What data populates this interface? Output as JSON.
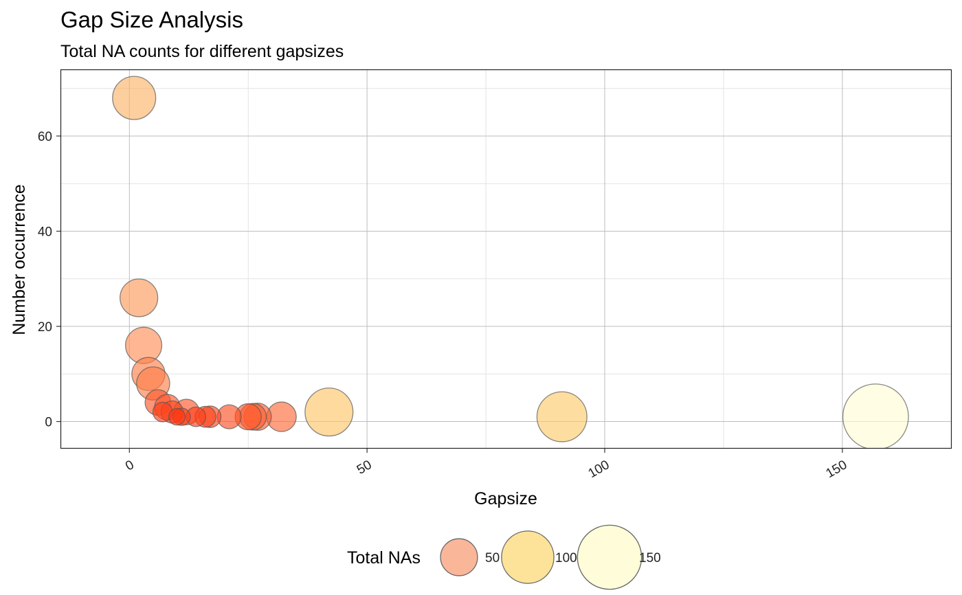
{
  "chart_data": {
    "type": "scatter",
    "title": "Gap Size Analysis",
    "subtitle": "Total NA counts for different gapsizes",
    "xlabel": "Gapsize",
    "ylabel": "Number occurrence",
    "xlim": [
      -14.5,
      173
    ],
    "ylim": [
      -5.7,
      74
    ],
    "x_ticks": [
      0,
      50,
      100,
      150
    ],
    "y_ticks": [
      0,
      20,
      40,
      60
    ],
    "grid": true,
    "legend_position": "bottom",
    "legend": {
      "title": "Total NAs",
      "entries": [
        {
          "label": "50",
          "value": 50,
          "color": "#f9a47f"
        },
        {
          "label": "100",
          "value": 100,
          "color": "#fddc80"
        },
        {
          "label": "150",
          "value": 150,
          "color": "#fefbd0"
        }
      ]
    },
    "size_scale": {
      "max_value": 157,
      "max_radius_data": 6.9
    },
    "points": [
      {
        "gapsize": 1,
        "occurrence": 68,
        "total_na": 68
      },
      {
        "gapsize": 2,
        "occurrence": 26,
        "total_na": 52
      },
      {
        "gapsize": 3,
        "occurrence": 16,
        "total_na": 48
      },
      {
        "gapsize": 4,
        "occurrence": 10,
        "total_na": 40
      },
      {
        "gapsize": 5,
        "occurrence": 8,
        "total_na": 40
      },
      {
        "gapsize": 6,
        "occurrence": 4,
        "total_na": 24
      },
      {
        "gapsize": 7,
        "occurrence": 2,
        "total_na": 14
      },
      {
        "gapsize": 8,
        "occurrence": 3,
        "total_na": 24
      },
      {
        "gapsize": 9,
        "occurrence": 2,
        "total_na": 18
      },
      {
        "gapsize": 10,
        "occurrence": 1,
        "total_na": 10
      },
      {
        "gapsize": 11,
        "occurrence": 1,
        "total_na": 11
      },
      {
        "gapsize": 12,
        "occurrence": 2,
        "total_na": 24
      },
      {
        "gapsize": 14,
        "occurrence": 1,
        "total_na": 14
      },
      {
        "gapsize": 16,
        "occurrence": 1,
        "total_na": 16
      },
      {
        "gapsize": 17,
        "occurrence": 1,
        "total_na": 17
      },
      {
        "gapsize": 21,
        "occurrence": 1,
        "total_na": 21
      },
      {
        "gapsize": 25,
        "occurrence": 1,
        "total_na": 25
      },
      {
        "gapsize": 26,
        "occurrence": 1,
        "total_na": 26
      },
      {
        "gapsize": 27,
        "occurrence": 1,
        "total_na": 27
      },
      {
        "gapsize": 32,
        "occurrence": 1,
        "total_na": 32
      },
      {
        "gapsize": 42,
        "occurrence": 2,
        "total_na": 84
      },
      {
        "gapsize": 91,
        "occurrence": 1,
        "total_na": 91
      },
      {
        "gapsize": 157,
        "occurrence": 1,
        "total_na": 157
      }
    ]
  }
}
